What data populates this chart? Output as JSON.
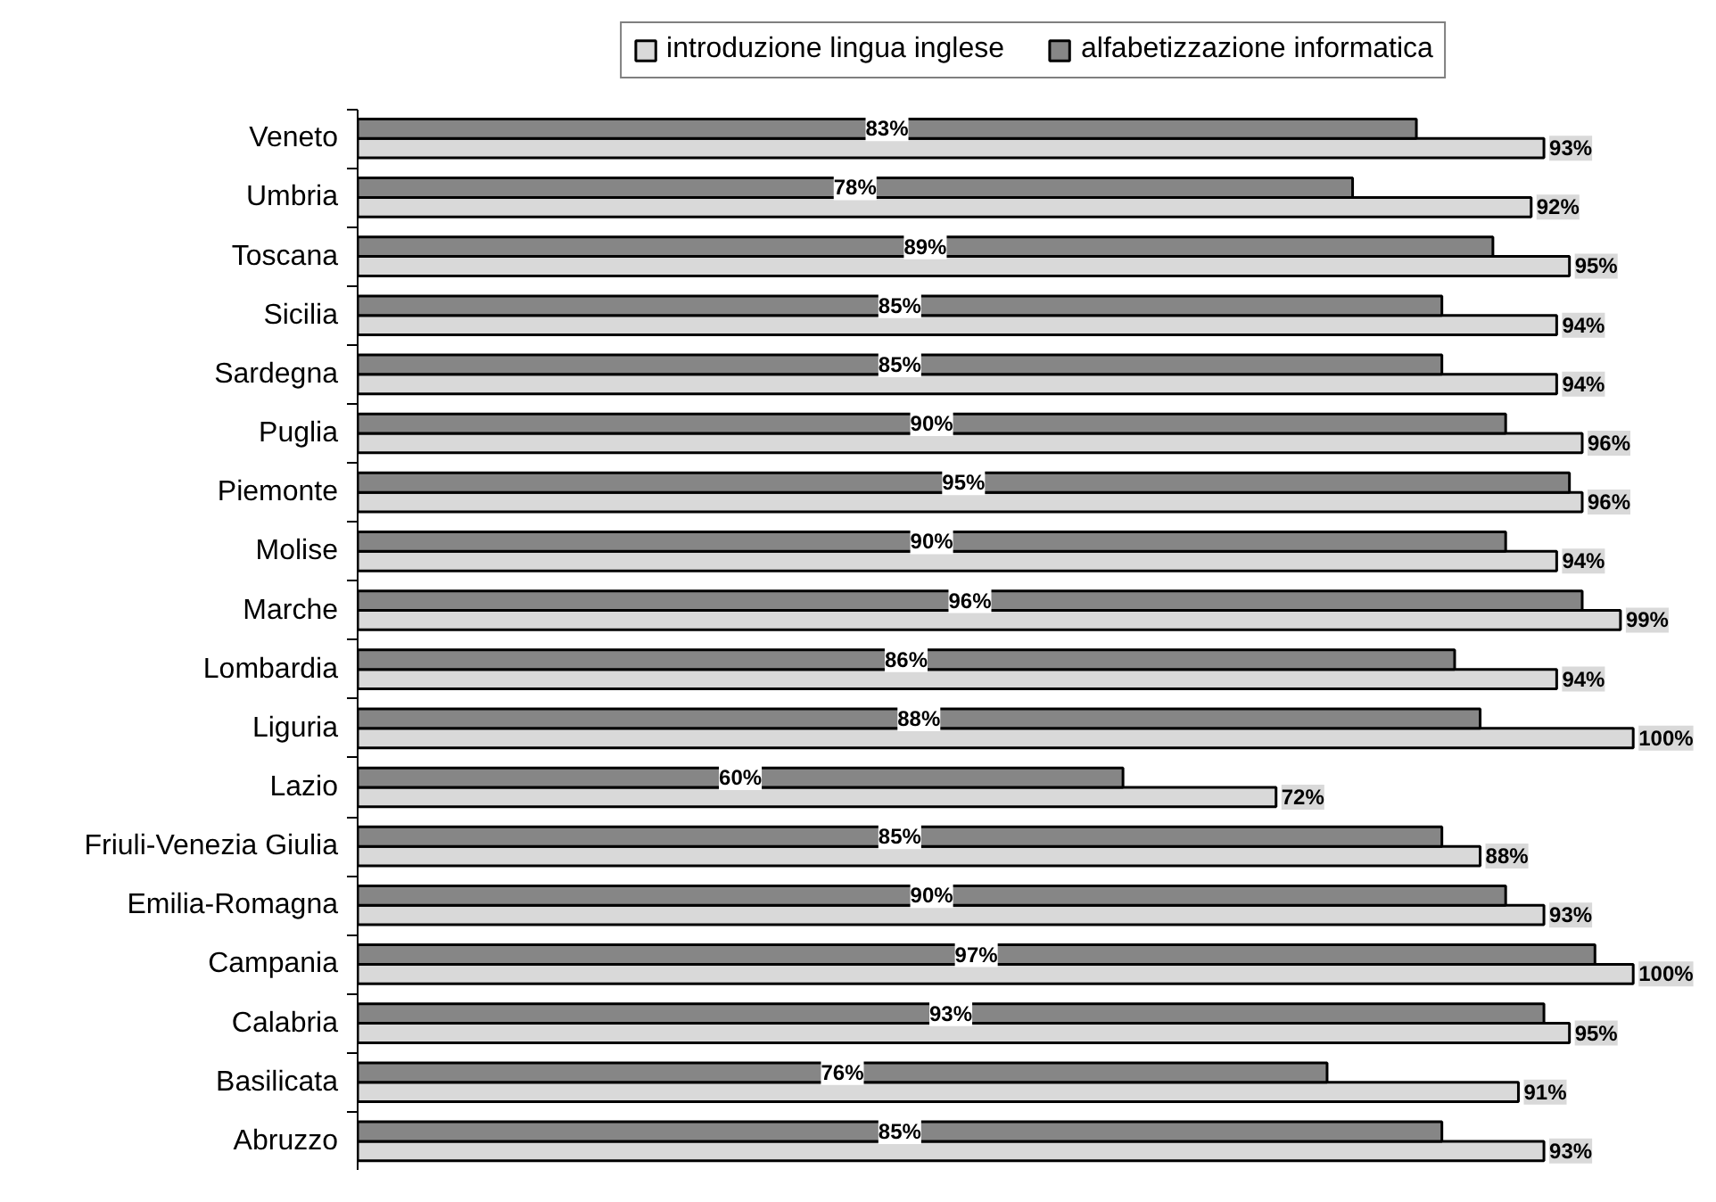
{
  "chart_data": {
    "type": "bar",
    "orientation": "horizontal",
    "categories": [
      "Veneto",
      "Umbria",
      "Toscana",
      "Sicilia",
      "Sardegna",
      "Puglia",
      "Piemonte",
      "Molise",
      "Marche",
      "Lombardia",
      "Liguria",
      "Lazio",
      "Friuli-Venezia Giulia",
      "Emilia-Romagna",
      "Campania",
      "Calabria",
      "Basilicata",
      "Abruzzo"
    ],
    "series": [
      {
        "name": "introduzione lingua inglese",
        "color": "#d9d9d9",
        "values": [
          93,
          92,
          95,
          94,
          94,
          96,
          96,
          94,
          99,
          94,
          100,
          72,
          88,
          93,
          100,
          95,
          91,
          93
        ],
        "value_labels": [
          "93%",
          "92%",
          "95%",
          "94%",
          "94%",
          "96%",
          "96%",
          "94%",
          "99%",
          "94%",
          "100%",
          "72%",
          "88%",
          "93%",
          "100%",
          "95%",
          "91%",
          "93%"
        ]
      },
      {
        "name": "alfabetizzazione informatica",
        "color": "#868686",
        "values": [
          83,
          78,
          89,
          85,
          85,
          90,
          95,
          90,
          96,
          86,
          88,
          60,
          85,
          90,
          97,
          93,
          76,
          85
        ],
        "value_labels": [
          "83%",
          "78%",
          "89%",
          "85%",
          "85%",
          "90%",
          "95%",
          "90%",
          "96%",
          "86%",
          "88%",
          "60%",
          "85%",
          "90%",
          "97%",
          "93%",
          "76%",
          "85%"
        ]
      }
    ],
    "tick_labels": "y",
    "legend": "top"
  }
}
